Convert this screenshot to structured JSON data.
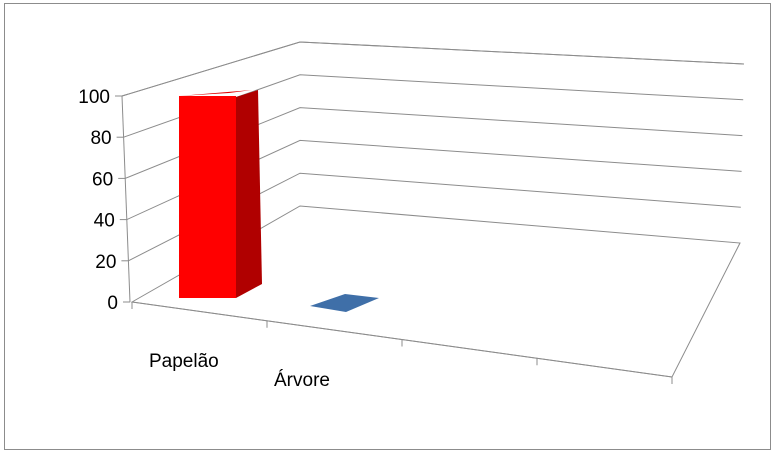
{
  "chart_data": {
    "type": "bar",
    "style": "3d-perspective",
    "categories": [
      "Papelão",
      "Árvore",
      "",
      ""
    ],
    "values": [
      100,
      0,
      null,
      null
    ],
    "bar_colors": [
      "#ff0000",
      "#3f6fa8"
    ],
    "yticks": [
      "0",
      "20",
      "40",
      "60",
      "80",
      "100"
    ],
    "ylim": [
      0,
      100
    ],
    "grid": true,
    "legend": false
  }
}
